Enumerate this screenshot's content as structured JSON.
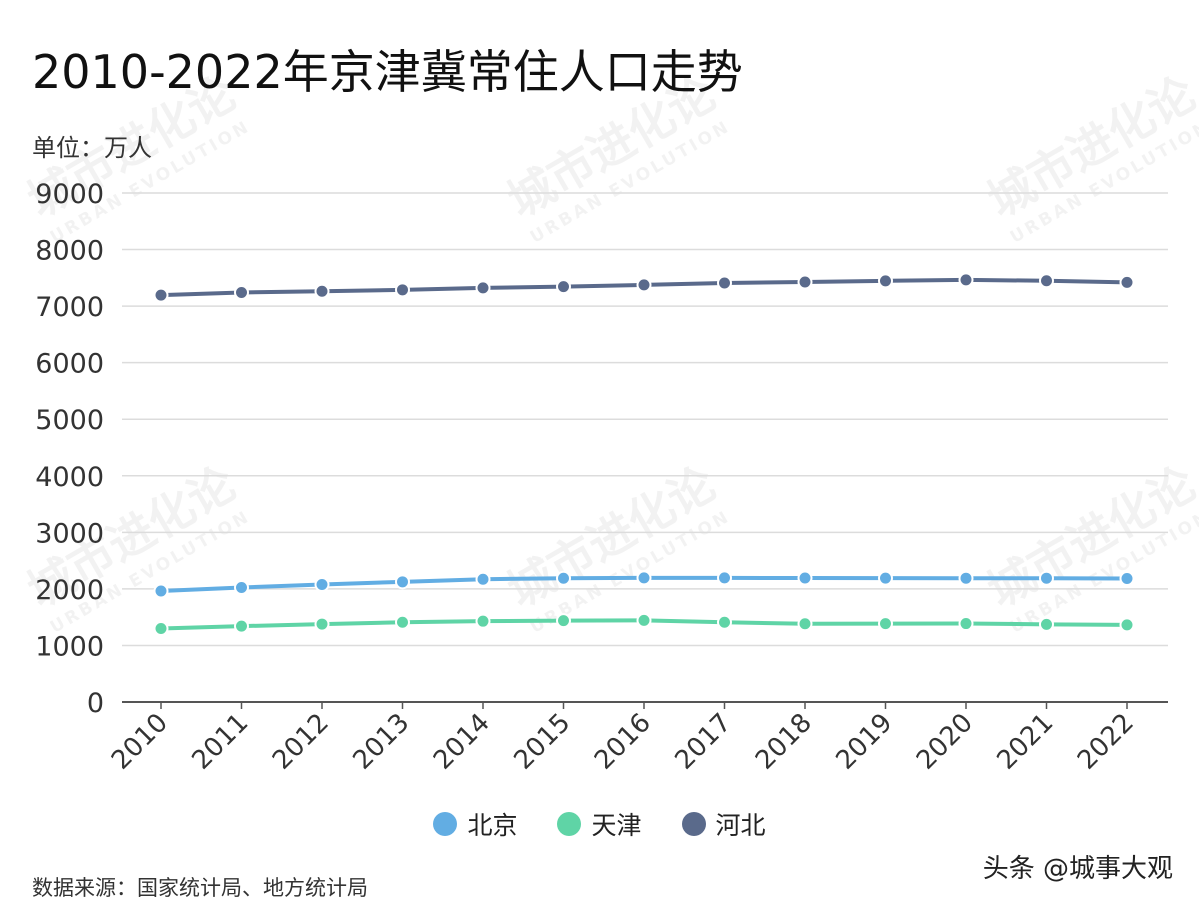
{
  "title": "2010-2022年京津冀常住人口走势",
  "unit_label": "单位：万人",
  "source": "数据来源：国家统计局、地方统计局",
  "credit": "头条 @城事大观",
  "watermark": {
    "cn": "城市进化论",
    "en": "URBAN EVOLUTION"
  },
  "chart_data": {
    "type": "line",
    "title": "2010-2022年京津冀常住人口走势",
    "ylabel": "单位：万人",
    "ylim": [
      0,
      9000
    ],
    "yticks": [
      0,
      1000,
      2000,
      3000,
      4000,
      5000,
      6000,
      7000,
      8000,
      9000
    ],
    "grid": true,
    "legend_position": "bottom",
    "categories": [
      "2010",
      "2011",
      "2012",
      "2013",
      "2014",
      "2015",
      "2016",
      "2017",
      "2018",
      "2019",
      "2020",
      "2021",
      "2022"
    ],
    "series": [
      {
        "name": "北京",
        "color": "#62ade3",
        "values": [
          1962,
          2024,
          2078,
          2125,
          2171,
          2188,
          2195,
          2194,
          2192,
          2190,
          2189,
          2189,
          2184
        ]
      },
      {
        "name": "天津",
        "color": "#5fd4a6",
        "values": [
          1299,
          1341,
          1378,
          1410,
          1429,
          1439,
          1443,
          1410,
          1383,
          1385,
          1387,
          1373,
          1363
        ]
      },
      {
        "name": "河北",
        "color": "#5a6a8b",
        "values": [
          7194,
          7241,
          7262,
          7288,
          7323,
          7345,
          7375,
          7409,
          7426,
          7447,
          7464,
          7448,
          7420
        ]
      }
    ]
  }
}
